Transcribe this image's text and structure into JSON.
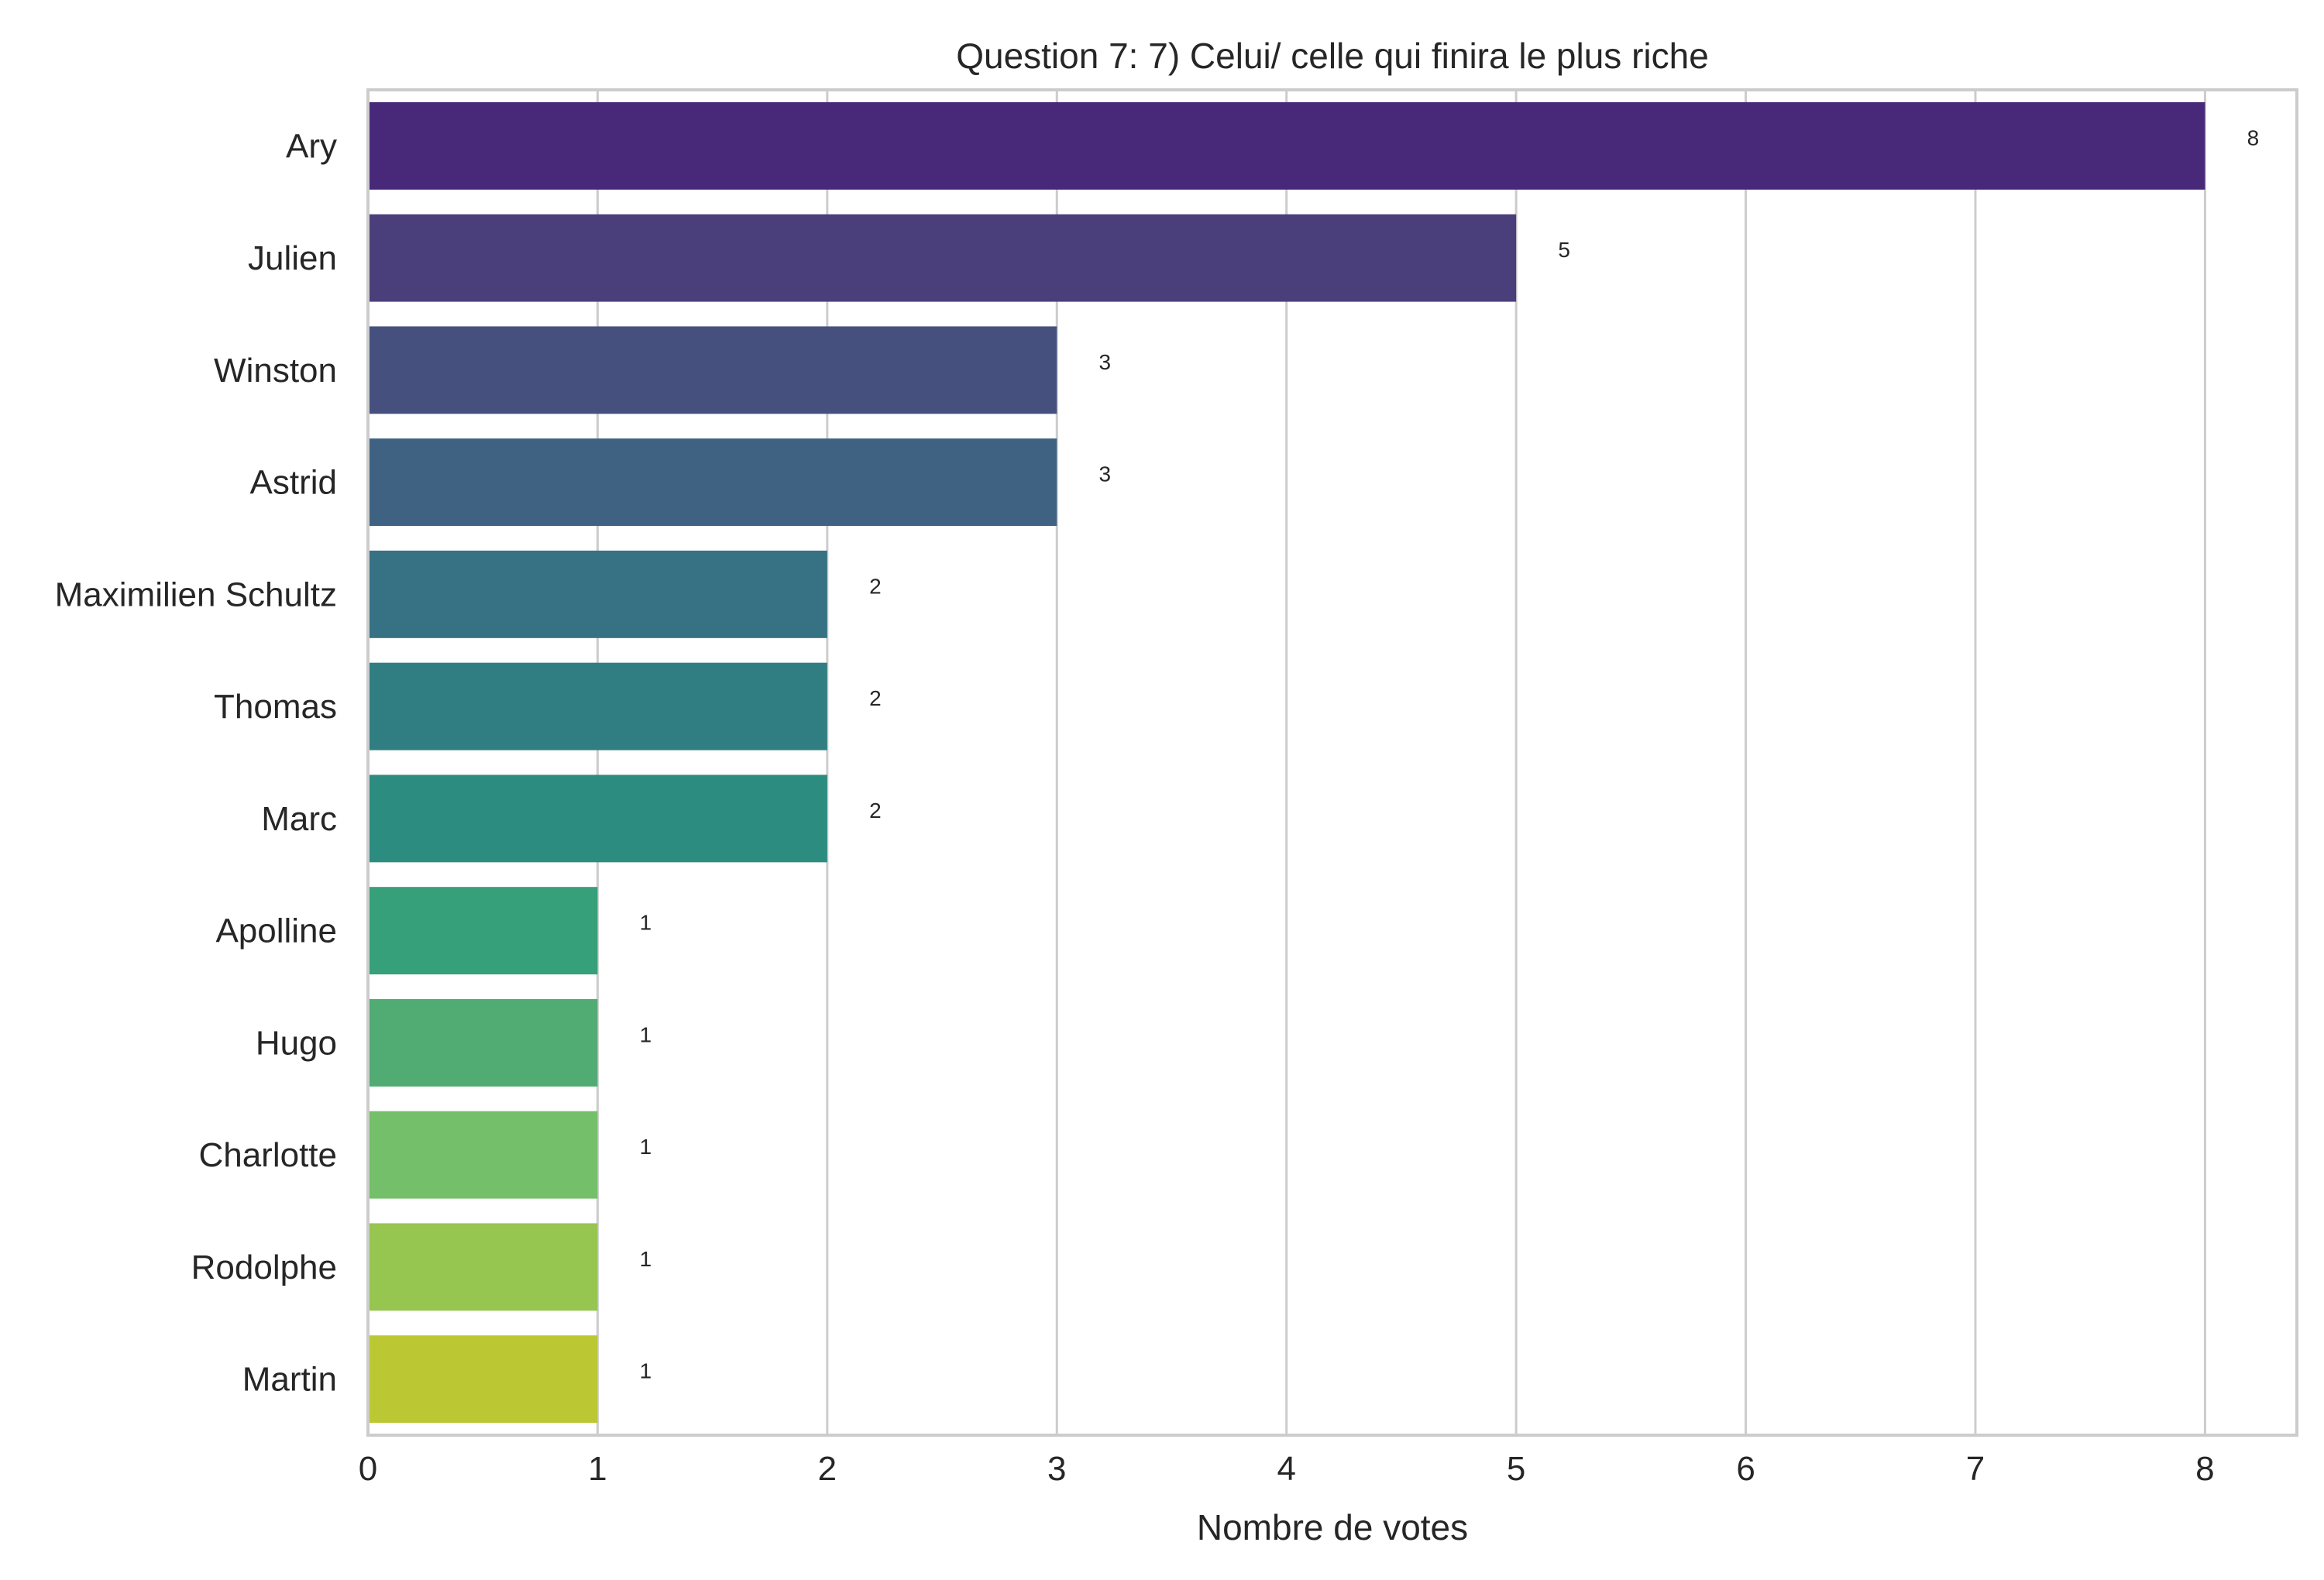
{
  "chart_data": {
    "type": "bar",
    "orientation": "horizontal",
    "title": "Question 7: 7) Celui/ celle qui finira le plus riche",
    "xlabel": "Nombre de votes",
    "ylabel": "",
    "categories": [
      "Ary",
      "Julien",
      "Winston",
      "Astrid",
      "Maximilien Schultz",
      "Thomas",
      "Marc",
      "Apolline",
      "Hugo",
      "Charlotte",
      "Rodolphe",
      "Martin"
    ],
    "values": [
      8,
      5,
      3,
      3,
      2,
      2,
      2,
      1,
      1,
      1,
      1,
      1
    ],
    "data_labels": [
      "8",
      "5",
      "3",
      "3",
      "2",
      "2",
      "2",
      "1",
      "1",
      "1",
      "1",
      "1"
    ],
    "xticks": [
      "0",
      "1",
      "2",
      "3",
      "4",
      "5",
      "6",
      "7",
      "8"
    ],
    "xlim": [
      0,
      8.4
    ],
    "grid": "vertical",
    "colors": [
      "#482878",
      "#4a3f7a",
      "#46507f",
      "#3f6282",
      "#367184",
      "#307e82",
      "#2c8c7f",
      "#35a07a",
      "#50ac73",
      "#74bf69",
      "#96c550",
      "#bbc833"
    ]
  }
}
